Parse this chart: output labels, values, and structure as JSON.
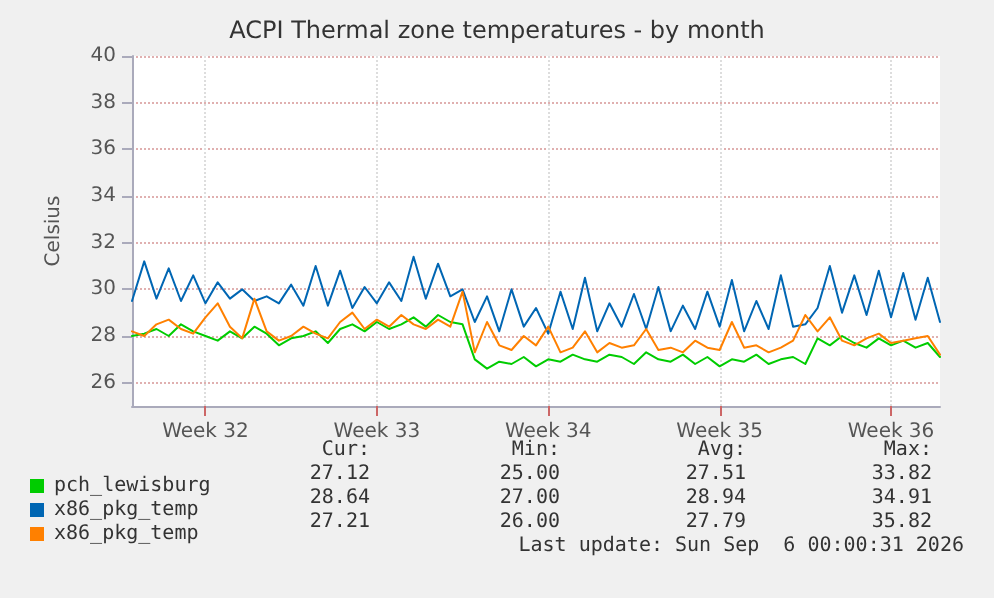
{
  "chart_data": {
    "type": "line",
    "title": "ACPI Thermal zone temperatures - by month",
    "ylabel": "Celsius",
    "categories": [
      null,
      null,
      null,
      null,
      null,
      null,
      "Week 32",
      null,
      null,
      null,
      null,
      null,
      null,
      null,
      null,
      null,
      null,
      null,
      null,
      null,
      "Week 33",
      null,
      null,
      null,
      null,
      null,
      null,
      null,
      null,
      null,
      null,
      null,
      null,
      null,
      "Week 34",
      null,
      null,
      null,
      null,
      null,
      null,
      null,
      null,
      null,
      null,
      null,
      null,
      null,
      "Week 35",
      null,
      null,
      null,
      null,
      null,
      null,
      null,
      null,
      null,
      null,
      null,
      null,
      null,
      "Week 36",
      null,
      null,
      null,
      null
    ],
    "ylim": [
      25,
      40
    ],
    "yticks": [
      26,
      28,
      30,
      32,
      34,
      36,
      38,
      40
    ],
    "grid": true,
    "legend": "bottom left",
    "marker": "none",
    "line_style": "solid",
    "series": [
      {
        "name": "pch_lewisburg",
        "color": "#00cc00",
        "values": [
          28.0,
          28.1,
          28.3,
          28.0,
          28.5,
          28.2,
          28.0,
          27.8,
          28.2,
          27.9,
          28.4,
          28.1,
          27.6,
          27.9,
          28.0,
          28.2,
          27.7,
          28.3,
          28.5,
          28.2,
          28.6,
          28.3,
          28.5,
          28.8,
          28.4,
          28.9,
          28.6,
          28.5,
          27.0,
          26.6,
          26.9,
          26.8,
          27.1,
          26.7,
          27.0,
          26.9,
          27.2,
          27.0,
          26.9,
          27.2,
          27.1,
          26.8,
          27.3,
          27.0,
          26.9,
          27.2,
          26.8,
          27.1,
          26.7,
          27.0,
          26.9,
          27.2,
          26.8,
          27.0,
          27.1,
          26.8,
          27.9,
          27.6,
          28.0,
          27.7,
          27.5,
          27.9,
          27.6,
          27.8,
          27.5,
          27.7,
          27.1
        ]
      },
      {
        "name": "x86_pkg_temp",
        "color": "#0066b3",
        "values": [
          29.5,
          31.2,
          29.6,
          30.9,
          29.5,
          30.6,
          29.4,
          30.3,
          29.6,
          30.0,
          29.5,
          29.7,
          29.4,
          30.2,
          29.3,
          31.0,
          29.3,
          30.8,
          29.2,
          30.1,
          29.4,
          30.3,
          29.5,
          31.4,
          29.6,
          31.1,
          29.7,
          30.0,
          28.6,
          29.7,
          28.2,
          30.0,
          28.4,
          29.2,
          28.1,
          29.9,
          28.3,
          30.5,
          28.2,
          29.4,
          28.4,
          29.8,
          28.3,
          30.1,
          28.2,
          29.3,
          28.3,
          29.9,
          28.4,
          30.4,
          28.2,
          29.5,
          28.3,
          30.6,
          28.4,
          28.5,
          29.2,
          31.0,
          29.0,
          30.6,
          28.9,
          30.8,
          28.8,
          30.7,
          28.7,
          30.5,
          28.6
        ]
      },
      {
        "name": "x86_pkg_temp",
        "color": "#ff8000",
        "values": [
          28.2,
          28.0,
          28.5,
          28.7,
          28.3,
          28.1,
          28.8,
          29.4,
          28.4,
          27.9,
          29.6,
          28.2,
          27.8,
          28.0,
          28.4,
          28.1,
          27.9,
          28.6,
          29.0,
          28.3,
          28.7,
          28.4,
          28.9,
          28.5,
          28.3,
          28.7,
          28.4,
          29.9,
          27.3,
          28.6,
          27.6,
          27.4,
          28.0,
          27.6,
          28.4,
          27.3,
          27.5,
          28.2,
          27.3,
          27.7,
          27.5,
          27.6,
          28.3,
          27.4,
          27.5,
          27.3,
          27.8,
          27.5,
          27.4,
          28.6,
          27.5,
          27.6,
          27.3,
          27.5,
          27.8,
          28.9,
          28.2,
          28.8,
          27.8,
          27.6,
          27.9,
          28.1,
          27.7,
          27.8,
          27.9,
          28.0,
          27.2
        ]
      }
    ],
    "annotations": [
      "Cur:",
      "Min:",
      "Avg:",
      "Max:",
      "27.12",
      "25.00",
      "27.51",
      "33.82",
      "28.64",
      "27.00",
      "28.94",
      "34.91",
      "27.21",
      "26.00",
      "27.79",
      "35.82",
      "Last update: Sun Sep  6 00:00:31 2026"
    ]
  }
}
